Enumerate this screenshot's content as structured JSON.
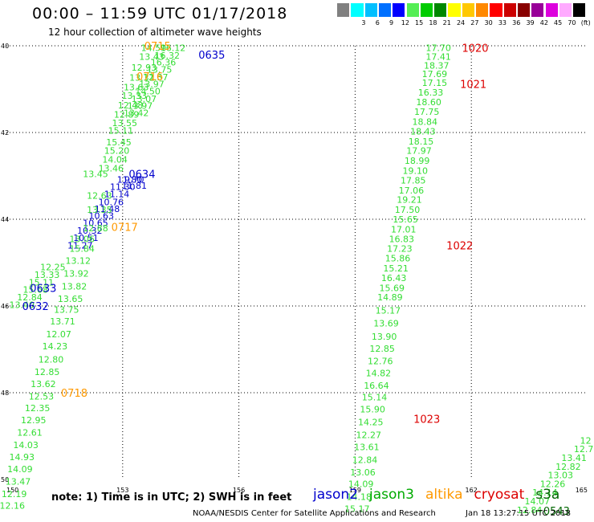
{
  "header": {
    "title": "00:00 – 11:59 UTC 01/17/2018",
    "subtitle": "12 hour collection of altimeter wave heights"
  },
  "color_scale": {
    "unit": "(ft)",
    "bins": [
      {
        "label": "",
        "color": "#808080"
      },
      {
        "label": "3",
        "color": "#00ffff"
      },
      {
        "label": "6",
        "color": "#00bfff"
      },
      {
        "label": "9",
        "color": "#0070ff"
      },
      {
        "label": "12",
        "color": "#0000ff"
      },
      {
        "label": "15",
        "color": "#55ee55"
      },
      {
        "label": "18",
        "color": "#00cc00"
      },
      {
        "label": "21",
        "color": "#008800"
      },
      {
        "label": "24",
        "color": "#ffff00"
      },
      {
        "label": "27",
        "color": "#ffc800"
      },
      {
        "label": "30",
        "color": "#ff8800"
      },
      {
        "label": "33",
        "color": "#ff0000"
      },
      {
        "label": "36",
        "color": "#cc0000"
      },
      {
        "label": "39",
        "color": "#880000"
      },
      {
        "label": "42",
        "color": "#990099"
      },
      {
        "label": "45",
        "color": "#dd00dd"
      },
      {
        "label": "70",
        "color": "#ffaaff"
      },
      {
        "label": "(ft)",
        "color": "#000000"
      }
    ]
  },
  "footer": {
    "note": "note: 1) Time is in UTC; 2) SWH is in feet",
    "satellites": [
      {
        "name": "jason2",
        "color": "#0000cc"
      },
      {
        "name": "jason3",
        "color": "#00aa00"
      },
      {
        "name": "altika",
        "color": "#ff9900"
      },
      {
        "name": "cryosat",
        "color": "#dd0000"
      },
      {
        "name": "s3a",
        "color": "#006600"
      }
    ],
    "credit": "NOAA/NESDIS Center for Satellite Applications and Research",
    "timestamp": "Jan 18 13:27:15 UTC 2018"
  },
  "chart_data": {
    "type": "scatter",
    "title": "00:00 – 11:59 UTC 01/17/2018",
    "subtitle": "12 hour collection of altimeter wave heights",
    "xlabel": "",
    "ylabel": "",
    "xlim": [
      150,
      165
    ],
    "ylim": [
      -50,
      -40
    ],
    "x_ticks": [
      150,
      153,
      156,
      159,
      162,
      165
    ],
    "y_ticks": [
      -40,
      -42,
      -44,
      -46,
      -48,
      -50
    ],
    "y_tick_labels": [
      "40",
      "42",
      "44",
      "46",
      "48",
      "50"
    ],
    "grid": true,
    "series": [
      {
        "name": "jason2",
        "color": "#0000cc",
        "points": [
          {
            "x": 153.18,
            "y": -43.08,
            "label": "11.80"
          },
          {
            "x": 153.0,
            "y": -43.25,
            "label": "11.30"
          },
          {
            "x": 152.85,
            "y": -43.42,
            "label": "11.14"
          },
          {
            "x": 152.7,
            "y": -43.6,
            "label": "10.76"
          },
          {
            "x": 152.6,
            "y": -43.76,
            "label": "11.48"
          },
          {
            "x": 152.45,
            "y": -43.92,
            "label": "10.63"
          },
          {
            "x": 152.3,
            "y": -44.08,
            "label": "10.65"
          },
          {
            "x": 152.15,
            "y": -44.26,
            "label": "10.32"
          },
          {
            "x": 152.05,
            "y": -44.43,
            "label": "10.51"
          },
          {
            "x": 151.9,
            "y": -44.6,
            "label": "11.27"
          },
          {
            "x": 153.3,
            "y": -43.08,
            "label": "9.70"
          },
          {
            "x": 153.3,
            "y": -43.22,
            "label": "11.81"
          }
        ]
      },
      {
        "name": "jason3",
        "color": "#33dd33",
        "points": [
          {
            "x": 153.8,
            "y": -40.05,
            "label": "14.59"
          },
          {
            "x": 153.75,
            "y": -40.25,
            "label": "13.43"
          },
          {
            "x": 153.55,
            "y": -40.5,
            "label": "12.93"
          },
          {
            "x": 153.5,
            "y": -40.73,
            "label": "13.31"
          },
          {
            "x": 153.35,
            "y": -40.95,
            "label": "13.63"
          },
          {
            "x": 153.3,
            "y": -41.15,
            "label": "13.33"
          },
          {
            "x": 153.2,
            "y": -41.37,
            "label": "12.48"
          },
          {
            "x": 153.1,
            "y": -41.58,
            "label": "12.89"
          },
          {
            "x": 153.05,
            "y": -41.78,
            "label": "13.55"
          },
          {
            "x": 152.95,
            "y": -41.95,
            "label": "15.11"
          },
          {
            "x": 152.9,
            "y": -42.22,
            "label": "15.45"
          },
          {
            "x": 152.85,
            "y": -42.42,
            "label": "15.20"
          },
          {
            "x": 152.8,
            "y": -42.62,
            "label": "14.04"
          },
          {
            "x": 152.7,
            "y": -42.82,
            "label": "13.46"
          },
          {
            "x": 152.3,
            "y": -42.95,
            "label": "13.45"
          },
          {
            "x": 152.4,
            "y": -43.45,
            "label": "12.63"
          },
          {
            "x": 152.4,
            "y": -43.78,
            "label": "13.35"
          },
          {
            "x": 152.3,
            "y": -44.2,
            "label": "12.88"
          },
          {
            "x": 151.95,
            "y": -44.45,
            "label": "13.06"
          },
          {
            "x": 151.95,
            "y": -44.68,
            "label": "15.84"
          },
          {
            "x": 151.85,
            "y": -44.95,
            "label": "13.12"
          },
          {
            "x": 151.8,
            "y": -45.25,
            "label": "13.92"
          },
          {
            "x": 151.75,
            "y": -45.55,
            "label": "13.82"
          },
          {
            "x": 151.65,
            "y": -45.83,
            "label": "13.65"
          },
          {
            "x": 151.55,
            "y": -46.08,
            "label": "13.75"
          },
          {
            "x": 151.45,
            "y": -46.35,
            "label": "13.71"
          },
          {
            "x": 151.35,
            "y": -46.65,
            "label": "12.07"
          },
          {
            "x": 151.25,
            "y": -46.93,
            "label": "14.23"
          },
          {
            "x": 151.15,
            "y": -47.23,
            "label": "12.80"
          },
          {
            "x": 151.05,
            "y": -47.52,
            "label": "12.85"
          },
          {
            "x": 150.95,
            "y": -47.8,
            "label": "13.62"
          },
          {
            "x": 150.9,
            "y": -48.08,
            "label": "12.53"
          },
          {
            "x": 150.8,
            "y": -48.35,
            "label": "12.35"
          },
          {
            "x": 150.7,
            "y": -48.63,
            "label": "12.95"
          },
          {
            "x": 150.6,
            "y": -48.92,
            "label": "12.61"
          },
          {
            "x": 150.5,
            "y": -49.2,
            "label": "14.03"
          },
          {
            "x": 150.4,
            "y": -49.48,
            "label": "14.93"
          },
          {
            "x": 150.35,
            "y": -49.76,
            "label": "14.09"
          },
          {
            "x": 150.3,
            "y": -50.05,
            "label": "13.47"
          },
          {
            "x": 150.2,
            "y": -50.33,
            "label": "12.19"
          },
          {
            "x": 150.15,
            "y": -50.6,
            "label": "12.16"
          },
          {
            "x": 151.2,
            "y": -45.1,
            "label": "12.25"
          },
          {
            "x": 151.05,
            "y": -45.28,
            "label": "13.33"
          },
          {
            "x": 150.9,
            "y": -45.45,
            "label": "15.11"
          },
          {
            "x": 150.75,
            "y": -45.62,
            "label": "15.68"
          },
          {
            "x": 150.6,
            "y": -45.8,
            "label": "12.84"
          },
          {
            "x": 150.4,
            "y": -45.97,
            "label": "13.40"
          },
          {
            "x": 161.15,
            "y": -40.05,
            "label": "17.70"
          },
          {
            "x": 161.15,
            "y": -40.25,
            "label": "17.41"
          },
          {
            "x": 161.1,
            "y": -40.45,
            "label": "18.37"
          },
          {
            "x": 161.05,
            "y": -40.65,
            "label": "17.69"
          },
          {
            "x": 161.05,
            "y": -40.85,
            "label": "17.15"
          },
          {
            "x": 160.95,
            "y": -41.07,
            "label": "16.33"
          },
          {
            "x": 160.9,
            "y": -41.3,
            "label": "18.60"
          },
          {
            "x": 160.85,
            "y": -41.52,
            "label": "17.75"
          },
          {
            "x": 160.8,
            "y": -41.75,
            "label": "18.84"
          },
          {
            "x": 160.75,
            "y": -41.97,
            "label": "18.43"
          },
          {
            "x": 160.7,
            "y": -42.2,
            "label": "18.15"
          },
          {
            "x": 160.65,
            "y": -42.42,
            "label": "17.97"
          },
          {
            "x": 160.6,
            "y": -42.65,
            "label": "18.99"
          },
          {
            "x": 160.55,
            "y": -42.88,
            "label": "19.10"
          },
          {
            "x": 160.5,
            "y": -43.1,
            "label": "17.85"
          },
          {
            "x": 160.45,
            "y": -43.33,
            "label": "17.06"
          },
          {
            "x": 160.4,
            "y": -43.55,
            "label": "19.21"
          },
          {
            "x": 160.35,
            "y": -43.78,
            "label": "17.50"
          },
          {
            "x": 160.3,
            "y": -44.0,
            "label": "15.65"
          },
          {
            "x": 160.25,
            "y": -44.23,
            "label": "17.01"
          },
          {
            "x": 160.2,
            "y": -44.45,
            "label": "16.83"
          },
          {
            "x": 160.15,
            "y": -44.68,
            "label": "17.23"
          },
          {
            "x": 160.1,
            "y": -44.9,
            "label": "15.86"
          },
          {
            "x": 160.05,
            "y": -45.13,
            "label": "15.21"
          },
          {
            "x": 160.0,
            "y": -45.35,
            "label": "16.43"
          },
          {
            "x": 159.95,
            "y": -45.58,
            "label": "15.69"
          },
          {
            "x": 159.9,
            "y": -45.8,
            "label": "14.89"
          },
          {
            "x": 159.85,
            "y": -46.1,
            "label": "15.17"
          },
          {
            "x": 159.8,
            "y": -46.4,
            "label": "13.69"
          },
          {
            "x": 159.75,
            "y": -46.7,
            "label": "13.90"
          },
          {
            "x": 159.7,
            "y": -46.98,
            "label": "12.85"
          },
          {
            "x": 159.65,
            "y": -47.27,
            "label": "12.76"
          },
          {
            "x": 159.6,
            "y": -47.55,
            "label": "14.82"
          },
          {
            "x": 159.55,
            "y": -47.83,
            "label": "16.64"
          },
          {
            "x": 159.5,
            "y": -48.1,
            "label": "15.14"
          },
          {
            "x": 159.45,
            "y": -48.38,
            "label": "15.90"
          },
          {
            "x": 159.4,
            "y": -48.68,
            "label": "14.25"
          },
          {
            "x": 159.35,
            "y": -48.97,
            "label": "12.27"
          },
          {
            "x": 159.3,
            "y": -49.25,
            "label": "13.61"
          },
          {
            "x": 159.25,
            "y": -49.55,
            "label": "12.84"
          },
          {
            "x": 159.2,
            "y": -49.83,
            "label": "13.06"
          },
          {
            "x": 159.15,
            "y": -50.1,
            "label": "14.09"
          },
          {
            "x": 159.1,
            "y": -50.4,
            "label": "14.18"
          },
          {
            "x": 159.05,
            "y": -50.68,
            "label": "15.17"
          },
          {
            "x": 164.95,
            "y": -49.1,
            "label": "12"
          },
          {
            "x": 164.9,
            "y": -49.3,
            "label": "12.7"
          },
          {
            "x": 164.65,
            "y": -49.5,
            "label": "13.41"
          },
          {
            "x": 164.5,
            "y": -49.7,
            "label": "12.82"
          },
          {
            "x": 164.3,
            "y": -49.9,
            "label": "13.03"
          },
          {
            "x": 164.1,
            "y": -50.1,
            "label": "12.26"
          },
          {
            "x": 163.9,
            "y": -50.3,
            "label": "14.14"
          },
          {
            "x": 163.7,
            "y": -50.5,
            "label": "14.07"
          },
          {
            "x": 163.5,
            "y": -50.7,
            "label": "12.84"
          },
          {
            "x": 154.3,
            "y": -40.05,
            "label": "16.12"
          },
          {
            "x": 154.15,
            "y": -40.22,
            "label": "16.32"
          },
          {
            "x": 154.05,
            "y": -40.38,
            "label": "16.36"
          },
          {
            "x": 153.95,
            "y": -40.55,
            "label": "13.75"
          },
          {
            "x": 153.85,
            "y": -40.72,
            "label": "12.37"
          },
          {
            "x": 153.75,
            "y": -40.88,
            "label": "13.97"
          },
          {
            "x": 153.65,
            "y": -41.05,
            "label": "14.50"
          },
          {
            "x": 153.55,
            "y": -41.22,
            "label": "13.07"
          },
          {
            "x": 153.45,
            "y": -41.38,
            "label": "13.97"
          },
          {
            "x": 153.35,
            "y": -41.55,
            "label": "13.42"
          }
        ]
      },
      {
        "name": "altika",
        "color": "#ff9900",
        "points": [],
        "pass_times": [
          "0716",
          "0717",
          "0718"
        ]
      },
      {
        "name": "cryosat",
        "color": "#dd0000",
        "points": []
      },
      {
        "name": "s3a",
        "color": "#006600",
        "points": []
      }
    ],
    "pass_labels": [
      {
        "text": "0715",
        "x": 153.9,
        "y": -40.0,
        "satellite": "altika"
      },
      {
        "text": "0635",
        "x": 155.3,
        "y": -40.2,
        "satellite": "jason2"
      },
      {
        "text": "0716",
        "x": 153.7,
        "y": -40.7,
        "satellite": "altika"
      },
      {
        "text": "0634",
        "x": 153.5,
        "y": -42.95,
        "satellite": "jason2"
      },
      {
        "text": "0717",
        "x": 153.05,
        "y": -44.18,
        "satellite": "altika"
      },
      {
        "text": "0633",
        "x": 150.95,
        "y": -45.58,
        "satellite": "jason2"
      },
      {
        "text": "0632",
        "x": 150.75,
        "y": -46.0,
        "satellite": "jason2"
      },
      {
        "text": "0718",
        "x": 151.75,
        "y": -48.0,
        "satellite": "altika"
      },
      {
        "text": "1020",
        "x": 162.1,
        "y": -40.05,
        "satellite": "cryosat"
      },
      {
        "text": "1021",
        "x": 162.05,
        "y": -40.88,
        "satellite": "cryosat"
      },
      {
        "text": "1022",
        "x": 161.7,
        "y": -44.6,
        "satellite": "cryosat"
      },
      {
        "text": "1023",
        "x": 160.85,
        "y": -48.6,
        "satellite": "cryosat"
      },
      {
        "text": "0543",
        "x": 164.2,
        "y": -50.72,
        "satellite": "s3a"
      }
    ]
  }
}
